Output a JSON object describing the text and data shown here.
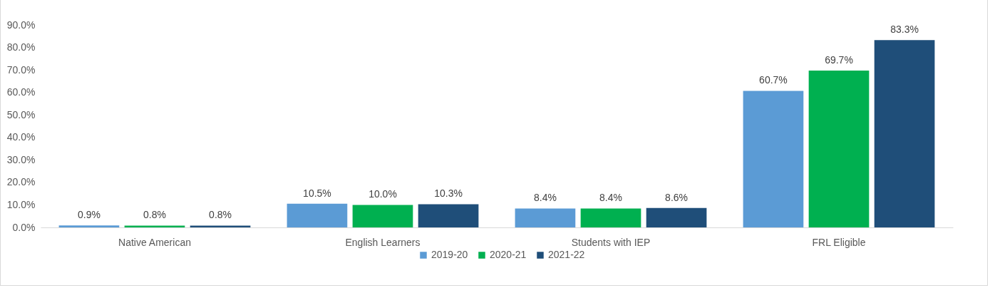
{
  "chart_data": {
    "type": "bar",
    "categories": [
      "Native American",
      "English Learners",
      "Students with IEP",
      "FRL Eligible"
    ],
    "series": [
      {
        "name": "2019-20",
        "color": "#5b9bd5",
        "values": [
          0.9,
          10.5,
          8.4,
          60.7
        ],
        "value_labels": [
          "0.9%",
          "10.5%",
          "8.4%",
          "60.7%"
        ]
      },
      {
        "name": "2020-21",
        "color": "#00b050",
        "values": [
          0.8,
          10.0,
          8.4,
          69.7
        ],
        "value_labels": [
          "0.8%",
          "10.0%",
          "8.4%",
          "69.7%"
        ]
      },
      {
        "name": "2021-22",
        "color": "#1f4e79",
        "values": [
          0.8,
          10.3,
          8.6,
          83.3
        ],
        "value_labels": [
          "0.8%",
          "10.3%",
          "8.6%",
          "83.3%"
        ]
      }
    ],
    "ylim": [
      0,
      90
    ],
    "yticks": [
      {
        "value": 0,
        "label": "0.0%"
      },
      {
        "value": 10,
        "label": "10.0%"
      },
      {
        "value": 20,
        "label": "20.0%"
      },
      {
        "value": 30,
        "label": "30.0%"
      },
      {
        "value": 40,
        "label": "40.0%"
      },
      {
        "value": 50,
        "label": "50.0%"
      },
      {
        "value": 60,
        "label": "60.0%"
      },
      {
        "value": 70,
        "label": "70.0%"
      },
      {
        "value": 80,
        "label": "80.0%"
      },
      {
        "value": 90,
        "label": "90.0%"
      }
    ],
    "grid": false,
    "legend": "bottom"
  }
}
